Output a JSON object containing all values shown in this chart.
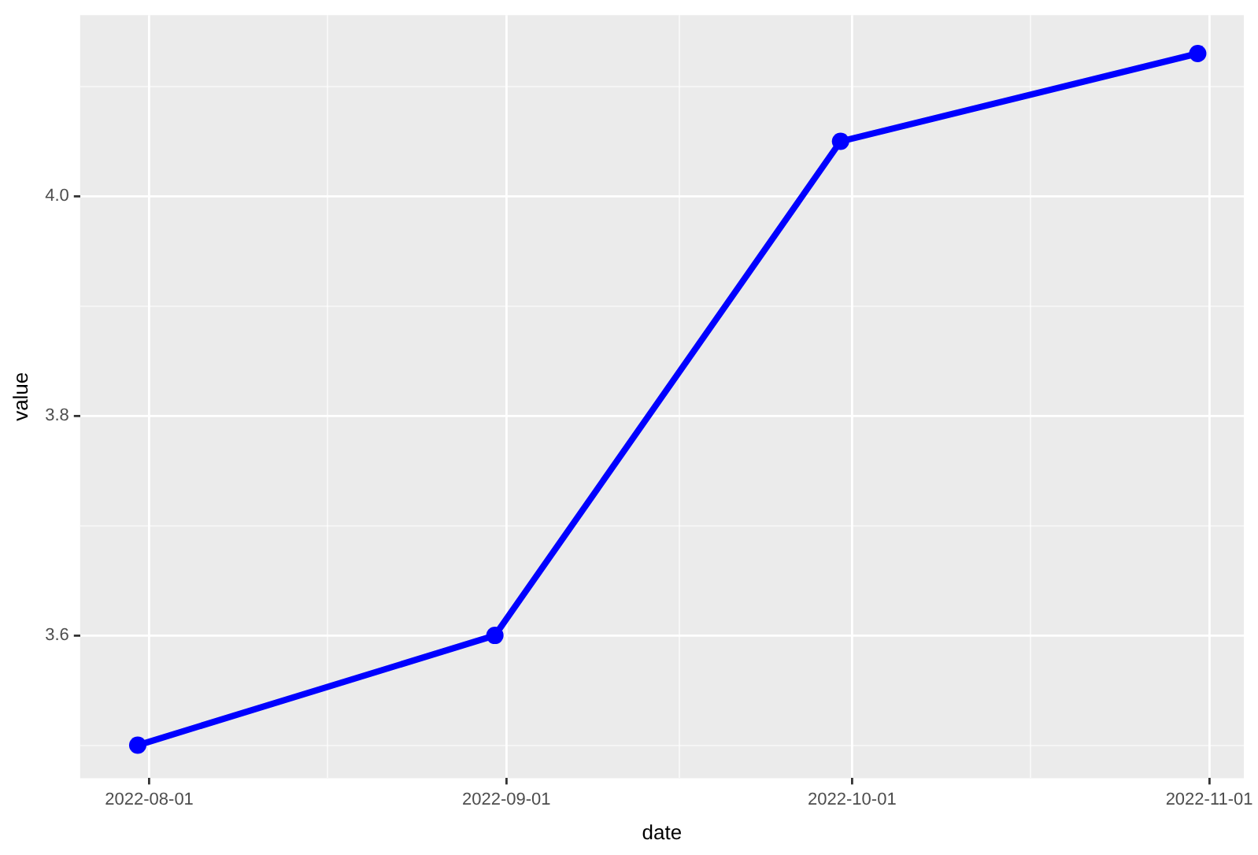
{
  "chart_data": {
    "type": "line",
    "xlabel": "date",
    "ylabel": "value",
    "x": [
      "2022-07-31",
      "2022-08-31",
      "2022-09-30",
      "2022-10-31"
    ],
    "values": [
      3.5,
      3.6,
      4.05,
      4.13
    ],
    "color": "#0000ff",
    "marker": "circle",
    "line_style": "solid",
    "grid": true,
    "xlim": [
      "2022-07-26",
      "2022-11-04"
    ],
    "xticks": [
      "2022-08-01",
      {
        "value": "2022-08-16T12:00",
        "label": null
      },
      "2022-09-01",
      {
        "value": "2022-09-16",
        "label": null
      },
      "2022-10-01",
      {
        "value": "2022-10-16T12:00",
        "label": null
      },
      "2022-11-01"
    ],
    "ylim": [
      3.47,
      4.165
    ],
    "yticks": [
      {
        "value": 3.5,
        "label": null
      },
      {
        "value": 3.6,
        "label": "3.6"
      },
      {
        "value": 3.7,
        "label": null
      },
      {
        "value": 3.8,
        "label": "3.8"
      },
      {
        "value": 3.9,
        "label": null
      },
      {
        "value": 4.0,
        "label": "4.0"
      },
      {
        "value": 4.1,
        "label": null
      }
    ]
  }
}
